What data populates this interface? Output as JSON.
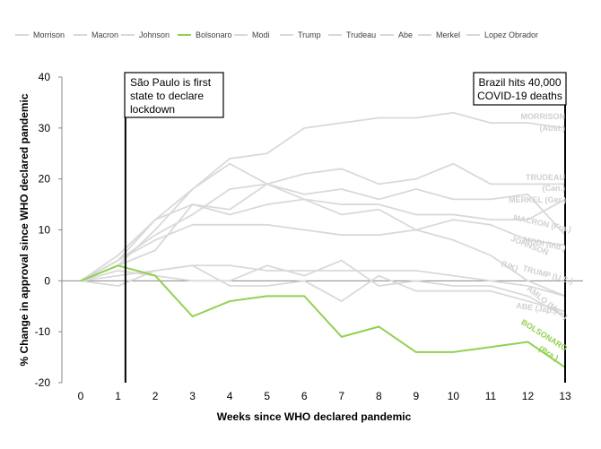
{
  "chart_data": {
    "type": "line",
    "x": [
      0,
      1,
      2,
      3,
      4,
      5,
      6,
      7,
      8,
      9,
      10,
      11,
      12,
      13
    ],
    "xlabel": "Weeks since WHO declared pandemic",
    "ylabel": "% Change in approval since WHO declared pandemic",
    "ylim": [
      -20,
      40
    ],
    "yticks": [
      -20,
      -10,
      0,
      10,
      20,
      30,
      40
    ],
    "grid": false,
    "legend_position": "top",
    "series": [
      {
        "name": "Morrison",
        "color": "#d9d9d9",
        "label": [
          "MORRISON",
          "(Aust.)"
        ],
        "values": [
          0,
          3,
          10,
          18,
          24,
          25,
          30,
          31,
          32,
          32,
          33,
          31,
          31,
          30
        ]
      },
      {
        "name": "Macron",
        "color": "#d9d9d9",
        "label": [
          "MACRON (Fra.)"
        ],
        "values": [
          0,
          4,
          8,
          11,
          11,
          11,
          10,
          9,
          9,
          10,
          12,
          11,
          8,
          7
        ]
      },
      {
        "name": "Johnson",
        "color": "#d9d9d9",
        "label": [
          "JOHNSON",
          "(UK)"
        ],
        "values": [
          0,
          4,
          12,
          15,
          14,
          19,
          16,
          13,
          14,
          10,
          8,
          5,
          0,
          -3
        ]
      },
      {
        "name": "Bolsonaro",
        "color": "#92d050",
        "label": [
          "BOLSONARO",
          "(Bra.)"
        ],
        "values": [
          0,
          3,
          1,
          -7,
          -4,
          -3,
          -3,
          -11,
          -9,
          -14,
          -14,
          -13,
          -12,
          -17
        ]
      },
      {
        "name": "Modi",
        "color": "#d9d9d9",
        "label": [
          "MODI (Ind.)"
        ],
        "values": [
          0,
          4,
          9,
          13,
          18,
          19,
          17,
          18,
          16,
          18,
          16,
          16,
          17,
          9
        ]
      },
      {
        "name": "Trump",
        "color": "#d9d9d9",
        "label": [
          "TRUMP (U.S.)"
        ],
        "values": [
          0,
          1,
          2,
          3,
          3,
          2,
          2,
          2,
          2,
          2,
          1,
          0,
          -1,
          -3
        ]
      },
      {
        "name": "Trudeau",
        "color": "#d9d9d9",
        "label": [
          "TRUDEAU",
          "(Can.)"
        ],
        "values": [
          0,
          5,
          12,
          18,
          23,
          19,
          21,
          22,
          19,
          20,
          23,
          19,
          19,
          19
        ]
      },
      {
        "name": "Abe",
        "color": "#d9d9d9",
        "label": [
          "ABE (Jap.)"
        ],
        "values": [
          0,
          -1,
          2,
          3,
          -1,
          -1,
          0,
          -4,
          1,
          -2,
          -2,
          -2,
          -4,
          -6
        ]
      },
      {
        "name": "Merkel",
        "color": "#d9d9d9",
        "label": [
          "MERKEL (Ger.)"
        ],
        "values": [
          0,
          3,
          6,
          15,
          13,
          15,
          16,
          15,
          15,
          13,
          13,
          12,
          12,
          16
        ]
      },
      {
        "name": "Lopez Obrador",
        "color": "#d9d9d9",
        "label": [
          "AMLO (Mex.)"
        ],
        "values": [
          0,
          2,
          1,
          0,
          0,
          3,
          1,
          4,
          -1,
          0,
          -1,
          -1,
          -3,
          -7
        ]
      }
    ],
    "annotations": [
      {
        "x": 1.2,
        "lines": [
          "São Paulo is first",
          "state to declare",
          "lockdown"
        ]
      },
      {
        "x": 13,
        "lines": [
          "Brazil hits 40,000",
          "COVID-19 deaths"
        ]
      }
    ]
  }
}
